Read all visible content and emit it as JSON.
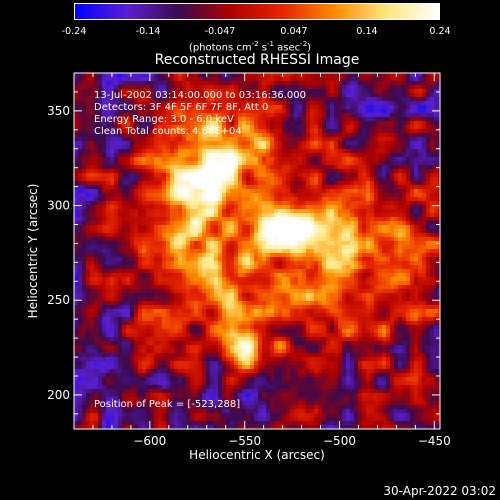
{
  "colors": {
    "background": "#000000",
    "colormap": [
      "#0000ff",
      "#5a1fd0",
      "#3b0a4e",
      "#b00000",
      "#e62600",
      "#ff8c00",
      "#ffe680",
      "#ffffff"
    ]
  },
  "colorbar": {
    "ticks": [
      "-0.24",
      "-0.14",
      "-0.047",
      "0.047",
      "0.14",
      "0.24"
    ],
    "units_main": "(photons cm",
    "units_exp1": "-2",
    "units_mid1": " s",
    "units_exp2": "-1",
    "units_mid2": " asec",
    "units_exp3": "-2",
    "units_end": ")"
  },
  "chart_data": {
    "type": "heatmap",
    "title": "Reconstructed RHESSI Image",
    "xlabel": "Heliocentric X (arcsec)",
    "ylabel": "Heliocentric Y (arcsec)",
    "xlim": [
      -640,
      -447
    ],
    "ylim": [
      182,
      370
    ],
    "value_range": [
      -0.24,
      0.24
    ],
    "x_ticks": [
      -600,
      -550,
      -500,
      -450
    ],
    "x_tick_labels": [
      "−600",
      "−550",
      "−500",
      "−450"
    ],
    "y_ticks": [
      200,
      250,
      300,
      350
    ],
    "y_tick_labels": [
      "200",
      "250",
      "300",
      "350"
    ],
    "grid": false,
    "annotations": [
      "13-Jul-2002 03:14:00.000 to 03:16:36.000",
      "Detectors: 3F 4F 5F 6F 7F 8F, Att 0",
      "Energy Range: 3.0 - 6.0 keV",
      "Clean     Total counts: 4.68E+04"
    ],
    "peak_label": "Position of Peak = [-523,288]",
    "peak": [
      -523,
      288
    ]
  },
  "footer": {
    "timestamp": "30-Apr-2022 03:02"
  }
}
